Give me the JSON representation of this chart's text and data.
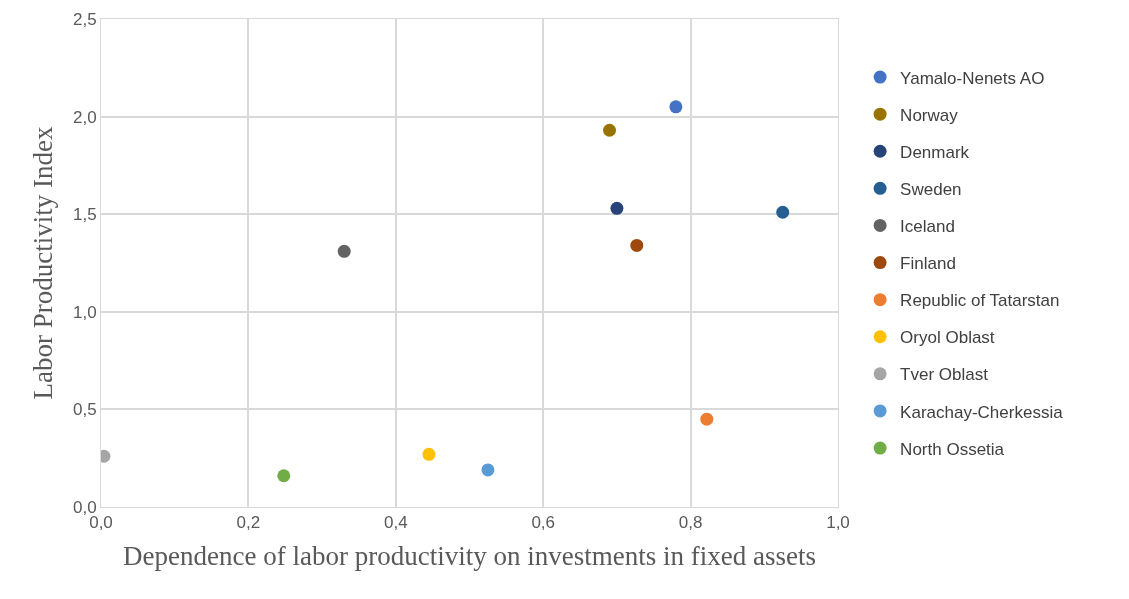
{
  "chart_data": {
    "type": "scatter",
    "xlabel": "Dependence of labor productivity on investments in fixed assets",
    "ylabel": "Labor Productivity Index",
    "xlim": [
      0,
      1
    ],
    "ylim": [
      0,
      2.5
    ],
    "xticks": [
      {
        "value": 0,
        "label": "0,0"
      },
      {
        "value": 0.2,
        "label": "0,2"
      },
      {
        "value": 0.4,
        "label": "0,4"
      },
      {
        "value": 0.6,
        "label": "0,6"
      },
      {
        "value": 0.8,
        "label": "0,8"
      },
      {
        "value": 1,
        "label": "1,0"
      }
    ],
    "yticks": [
      {
        "value": 0,
        "label": "0,0"
      },
      {
        "value": 0.5,
        "label": "0,5"
      },
      {
        "value": 1,
        "label": "1,0"
      },
      {
        "value": 1.5,
        "label": "1,5"
      },
      {
        "value": 2,
        "label": "2,0"
      },
      {
        "value": 2.5,
        "label": "2,5"
      }
    ],
    "grid": true,
    "legend": "right",
    "marker": "circle",
    "series": [
      {
        "name": "Yamalo-Nenets AO",
        "color": "#4472c4",
        "x": [
          0.78
        ],
        "values": [
          2.05
        ]
      },
      {
        "name": "Norway",
        "color": "#997300",
        "x": [
          0.69
        ],
        "values": [
          1.93
        ]
      },
      {
        "name": "Denmark",
        "color": "#264478",
        "x": [
          0.7
        ],
        "values": [
          1.53
        ]
      },
      {
        "name": "Sweden",
        "color": "#255e91",
        "x": [
          0.925
        ],
        "values": [
          1.51
        ]
      },
      {
        "name": "Iceland",
        "color": "#636363",
        "x": [
          0.33
        ],
        "values": [
          1.31
        ]
      },
      {
        "name": "Finland",
        "color": "#9e480e",
        "x": [
          0.727
        ],
        "values": [
          1.34
        ]
      },
      {
        "name": "Republic of Tatarstan",
        "color": "#ed7d31",
        "x": [
          0.822
        ],
        "values": [
          0.45
        ]
      },
      {
        "name": "Oryol Oblast",
        "color": "#ffc000",
        "x": [
          0.445
        ],
        "values": [
          0.27
        ]
      },
      {
        "name": "Tver Oblast",
        "color": "#a5a5a5",
        "x": [
          0.004
        ],
        "values": [
          0.26
        ]
      },
      {
        "name": "Karachay-Cherkessia",
        "color": "#5b9bd5",
        "x": [
          0.525
        ],
        "values": [
          0.19
        ]
      },
      {
        "name": "North Ossetia",
        "color": "#70ad47",
        "x": [
          0.248
        ],
        "values": [
          0.16
        ]
      }
    ]
  }
}
